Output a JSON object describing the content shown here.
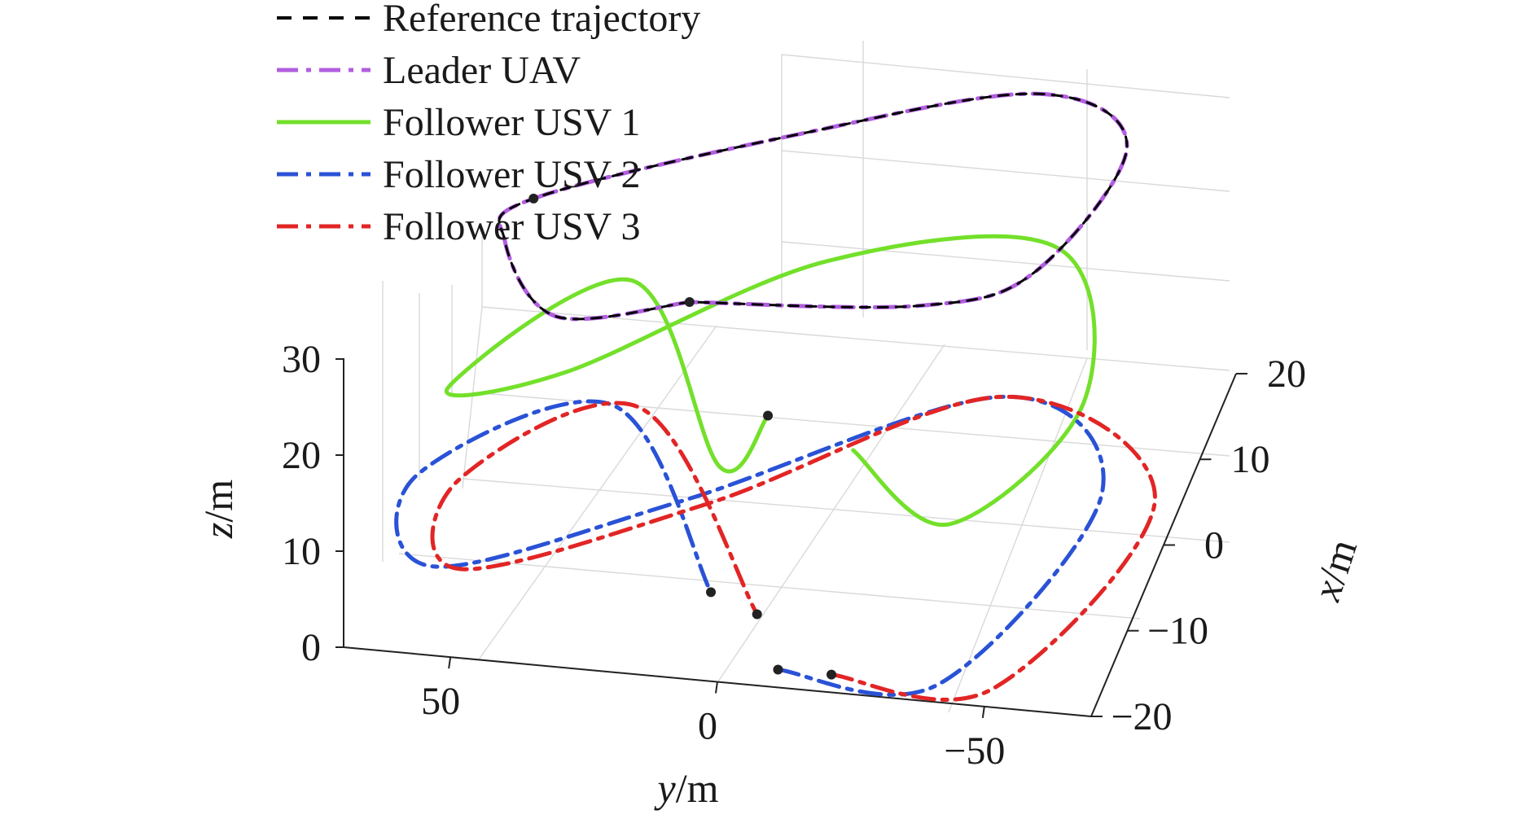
{
  "chart_data": {
    "type": "line",
    "projection": "3d",
    "title": "",
    "axes": {
      "x": {
        "label": "x/m",
        "range": [
          -20,
          20
        ],
        "ticks": [
          20,
          10,
          0,
          -10,
          -20
        ],
        "tick_labels": [
          "20",
          "10",
          "0",
          "−10",
          "−20"
        ]
      },
      "y": {
        "label": "y/m",
        "range": [
          70,
          -70
        ],
        "ticks": [
          50,
          0,
          -50
        ],
        "tick_labels": [
          "50",
          "0",
          "−50"
        ]
      },
      "z": {
        "label": "z/m",
        "range": [
          0,
          30
        ],
        "ticks": [
          0,
          10,
          20,
          30
        ],
        "tick_labels": [
          "0",
          "10",
          "20",
          "30"
        ]
      }
    },
    "grid": true,
    "legend_position": "top-left",
    "series": [
      {
        "name": "Reference trajectory",
        "color": "#000000",
        "style": "dashed",
        "points": [
          [
            -10,
            12,
            30
          ],
          [
            -13,
            35,
            30
          ],
          [
            -5,
            50,
            30
          ],
          [
            0,
            48,
            30
          ],
          [
            10,
            5,
            30
          ],
          [
            17,
            -35,
            30
          ],
          [
            12,
            -55,
            30
          ],
          [
            -3,
            -48,
            30
          ],
          [
            -8,
            -30,
            30
          ],
          [
            -10,
            12,
            30
          ]
        ]
      },
      {
        "name": "Leader UAV",
        "color": "#b15ee0",
        "style": "dashdot",
        "points": [
          [
            -10,
            12,
            30
          ],
          [
            -13,
            35,
            30
          ],
          [
            -5,
            50,
            30
          ],
          [
            0,
            48,
            30
          ],
          [
            10,
            5,
            30
          ],
          [
            17,
            -35,
            30
          ],
          [
            12,
            -55,
            30
          ],
          [
            -3,
            -48,
            30
          ],
          [
            -8,
            -30,
            30
          ],
          [
            -10,
            12,
            30
          ]
        ]
      },
      {
        "name": "Follower USV 1",
        "color": "#73e02a",
        "style": "solid",
        "points": [
          [
            -12,
            -20,
            18
          ],
          [
            -15,
            -40,
            14
          ],
          [
            0,
            -55,
            14
          ],
          [
            15,
            -40,
            16
          ],
          [
            10,
            0,
            17
          ],
          [
            -3,
            40,
            15
          ],
          [
            -6,
            60,
            15
          ],
          [
            8,
            35,
            15
          ],
          [
            -12,
            5,
            15
          ],
          [
            -9,
            -2,
            18
          ]
        ]
      },
      {
        "name": "Follower USV 2",
        "color": "#2a52d6",
        "style": "dashdot",
        "points": [
          [
            -18,
            -10,
            0
          ],
          [
            -18,
            -40,
            0
          ],
          [
            5,
            -55,
            0
          ],
          [
            15,
            -30,
            0
          ],
          [
            0,
            20,
            0
          ],
          [
            -10,
            60,
            0
          ],
          [
            0,
            70,
            0
          ],
          [
            10,
            40,
            0
          ],
          [
            -10,
            8,
            0
          ]
        ]
      },
      {
        "name": "Follower USV 3",
        "color": "#e22525",
        "style": "dashdot",
        "points": [
          [
            -18,
            -20,
            0
          ],
          [
            -18,
            -50,
            0
          ],
          [
            5,
            -65,
            0
          ],
          [
            15,
            -30,
            0
          ],
          [
            0,
            15,
            0
          ],
          [
            -10,
            55,
            0
          ],
          [
            0,
            62,
            0
          ],
          [
            10,
            35,
            0
          ],
          [
            -12,
            -2,
            0
          ]
        ]
      }
    ]
  }
}
